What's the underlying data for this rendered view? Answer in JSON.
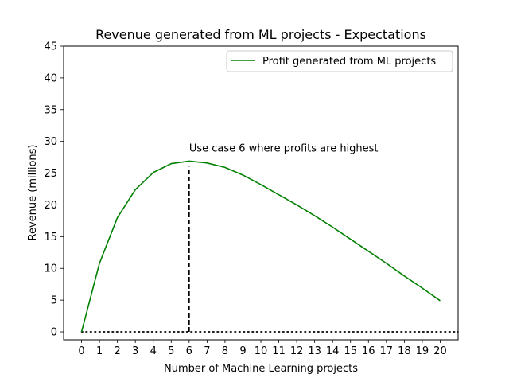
{
  "chart_data": {
    "type": "line",
    "title": "Revenue generated from ML projects - Expectations",
    "xlabel": "Number of Machine Learning projects",
    "ylabel": "Revenue (millions)",
    "xlim": [
      -1,
      21
    ],
    "ylim": [
      -1.25,
      45
    ],
    "x_ticks": [
      0,
      1,
      2,
      3,
      4,
      5,
      6,
      7,
      8,
      9,
      10,
      11,
      12,
      13,
      14,
      15,
      16,
      17,
      18,
      19,
      20
    ],
    "y_ticks": [
      0,
      5,
      10,
      15,
      20,
      25,
      30,
      35,
      40,
      45
    ],
    "grid": false,
    "legend_position": "top-right",
    "series": [
      {
        "name": "Profit generated from ML projects",
        "color": "#008000",
        "x": [
          0,
          1,
          2,
          3,
          4,
          5,
          6,
          7,
          8,
          9,
          10,
          11,
          12,
          13,
          14,
          15,
          16,
          17,
          18,
          19,
          20
        ],
        "values": [
          0,
          10.8,
          18.0,
          22.4,
          25.1,
          26.5,
          26.9,
          26.6,
          25.9,
          24.7,
          23.2,
          21.6,
          20.0,
          18.3,
          16.5,
          14.6,
          12.7,
          10.8,
          8.8,
          6.9,
          4.9
        ]
      }
    ],
    "reference_lines": [
      {
        "orientation": "vertical",
        "x": 6,
        "from": 0,
        "to": 26,
        "style": "dashed",
        "color": "#000000"
      },
      {
        "orientation": "horizontal",
        "y": 0,
        "from": 0,
        "to": 21,
        "style": "dotted",
        "color": "#000000"
      }
    ],
    "annotations": [
      {
        "text": "Use case 6 where profits are highest",
        "x": 6,
        "y": 28.4
      }
    ]
  }
}
